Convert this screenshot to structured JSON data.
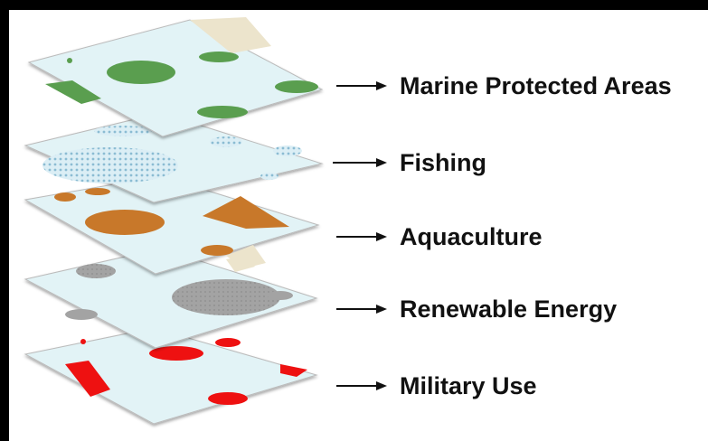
{
  "layers": [
    {
      "id": "marine-protected-areas",
      "label": "Marine Protected Areas",
      "color": "#5a9e4f",
      "pattern": "solid"
    },
    {
      "id": "fishing",
      "label": "Fishing",
      "color": "#9cc6da",
      "pattern": "dots"
    },
    {
      "id": "aquaculture",
      "label": "Aquaculture",
      "color": "#c8782a",
      "pattern": "solid"
    },
    {
      "id": "renewable-energy",
      "label": "Renewable Energy",
      "color": "#9c9c9c",
      "pattern": "solid"
    },
    {
      "id": "military-use",
      "label": "Military Use",
      "color": "#ee1111",
      "pattern": "solid"
    }
  ],
  "colors": {
    "sea": "#e2f3f6",
    "land": "#ece4cc",
    "frame": "#000000",
    "arrow": "#111111"
  }
}
